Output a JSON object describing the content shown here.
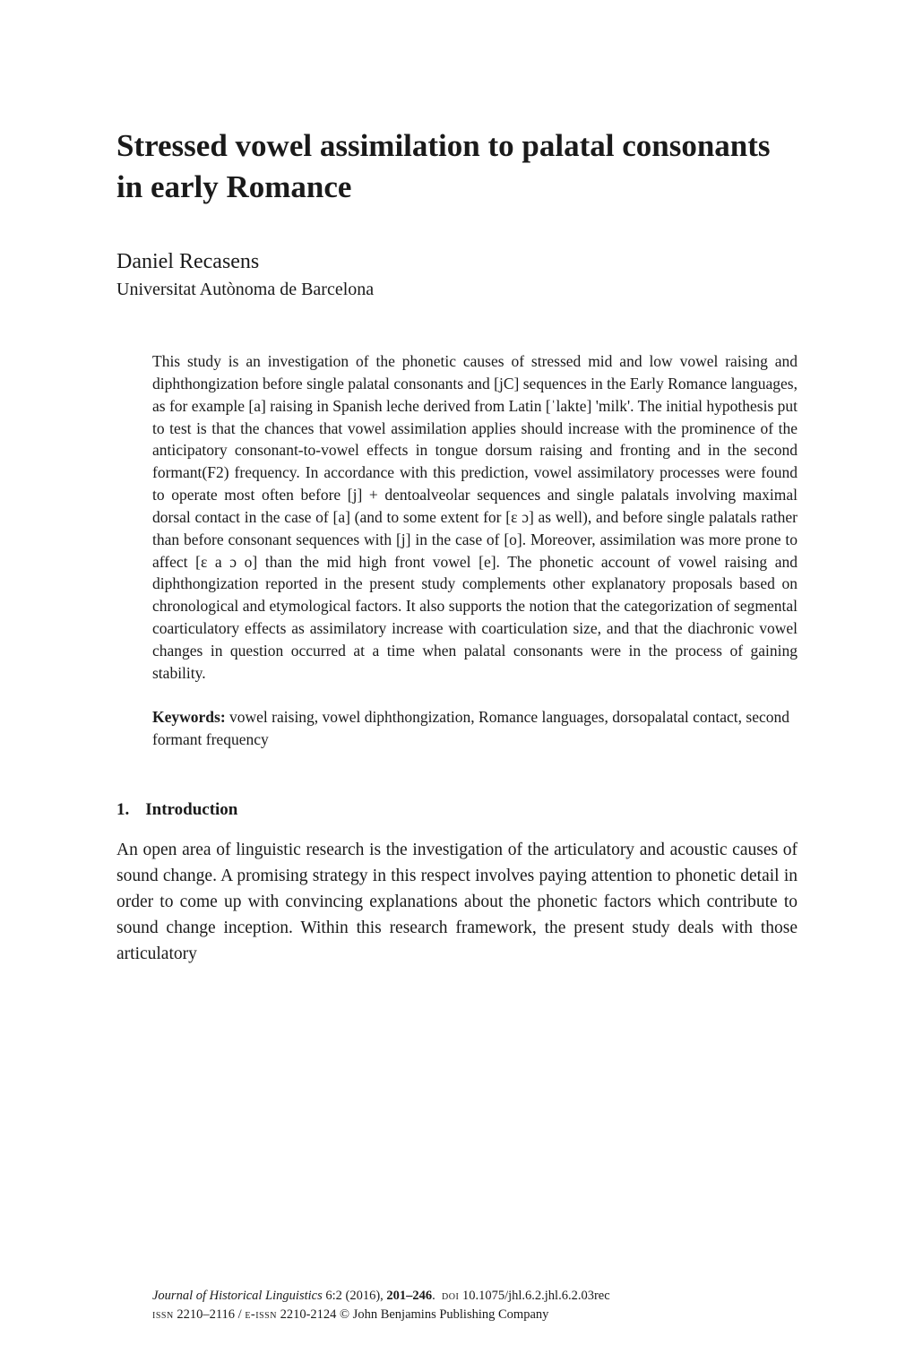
{
  "title": "Stressed vowel assimilation to palatal consonants in early Romance",
  "author": "Daniel Recasens",
  "affiliation": "Universitat Autònoma de Barcelona",
  "abstract": "This study is an investigation of the phonetic causes of stressed mid and low vowel raising and diphthongization before single palatal consonants and [jC] sequences in the Early Romance languages, as for example [a] raising in Spanish leche derived from Latin [ˈlakte] 'milk'. The initial hypothesis put to test is that the chances that vowel assimilation applies should increase with the prominence of the anticipatory consonant-to-vowel effects in tongue dorsum raising and fronting and in the second formant(F2) frequency. In accordance with this prediction, vowel assimilatory processes were found to operate most often before [j] + dentoalveolar sequences and single palatals involving maximal dorsal contact in the case of [a] (and to some extent for [ɛ ɔ] as well), and before single palatals rather than before consonant sequences with [j] in the case of [o]. Moreover, assimilation was more prone to affect [ɛ a ɔ o] than the mid high front vowel [e]. The phonetic account of vowel raising and diphthongization reported in the present study complements other explanatory proposals based on chronological and etymological factors. It also supports the notion that the categorization of segmental coarticulatory effects as assimilatory increase with coarticulation size, and that the diachronic vowel changes in question occurred at a time when palatal consonants were in the process of gaining stability.",
  "keywords_label": "Keywords:",
  "keywords": "vowel raising, vowel diphthongization, Romance languages, dorsopalatal contact, second formant frequency",
  "section": {
    "number": "1.",
    "title": "Introduction"
  },
  "body": "An open area of linguistic research is the investigation of the articulatory and acoustic causes of sound change. A promising strategy in this respect involves paying attention to phonetic detail in order to come up with convincing explanations about the phonetic factors which contribute to sound change inception. Within this research framework, the present study deals with those articulatory",
  "footer": {
    "journal": "Journal of Historical Linguistics",
    "volume_issue": "6:2 (2016),",
    "pages": "201–246",
    "doi_label": "doi",
    "doi": "10.1075/jhl.6.2.jhl.6.2.03rec",
    "issn_label": "issn",
    "issn": "2210–2116 /",
    "eissn_label": "e-issn",
    "eissn": "2210-2124",
    "publisher": "© John Benjamins Publishing Company"
  }
}
